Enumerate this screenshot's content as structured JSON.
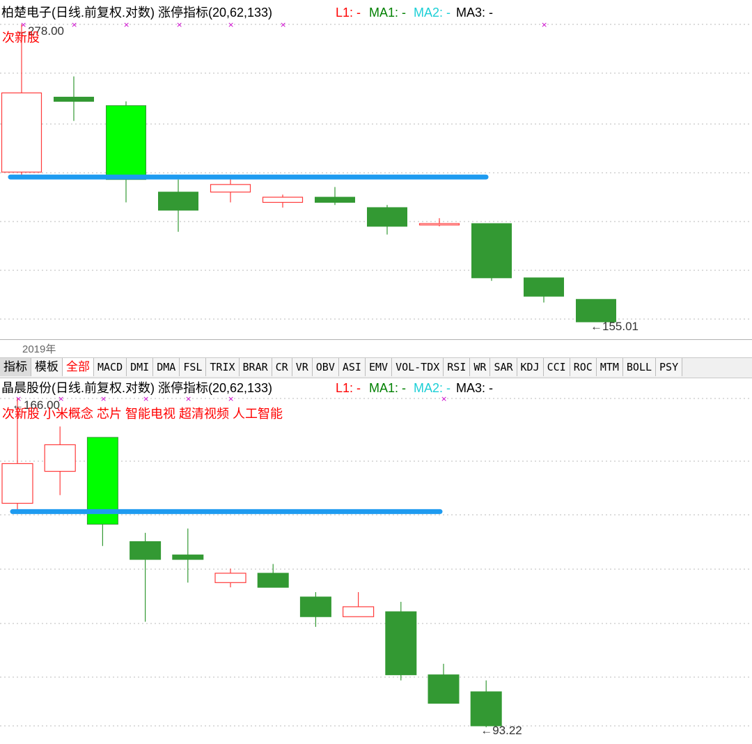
{
  "chart_data": [
    {
      "type": "candlestick",
      "title": "柏楚电子(日线.前复权.对数) 涨停指标(20,62,133)",
      "indicator": {
        "l1": "L1: -",
        "ma1": "MA1: -",
        "ma2": "MA2: -",
        "ma3": "MA3: -"
      },
      "tags": "次新股",
      "high_label": "278.00",
      "low_label": "155.01",
      "candles": [
        {
          "open": 208,
          "close": 243,
          "high": 278,
          "low": 206
        },
        {
          "open": 241,
          "close": 239,
          "high": 251,
          "low": 230
        },
        {
          "open": 237,
          "close": 205,
          "high": 239,
          "low": 196
        },
        {
          "open": 200,
          "close": 193,
          "high": 205,
          "low": 185
        },
        {
          "open": 200,
          "close": 203,
          "high": 206,
          "low": 196
        },
        {
          "open": 196,
          "close": 198,
          "high": 199,
          "low": 194
        },
        {
          "open": 198,
          "close": 196,
          "high": 202,
          "low": 195
        },
        {
          "open": 194,
          "close": 187,
          "high": 195,
          "low": 184
        },
        {
          "open": 188,
          "close": 188,
          "high": 190,
          "low": 187
        },
        {
          "open": 188,
          "close": 169,
          "high": 188,
          "low": 168
        },
        {
          "open": 169,
          "close": 163,
          "high": 169,
          "low": 161
        },
        {
          "open": 162,
          "close": 155,
          "high": 162,
          "low": 155
        }
      ],
      "support_line": 206
    },
    {
      "type": "candlestick",
      "title": "晶晨股份(日线.前复权.对数) 涨停指标(20,62,133)",
      "indicator": {
        "l1": "L1: -",
        "ma1": "MA1: -",
        "ma2": "MA2: -",
        "ma3": "MA3: -"
      },
      "tags": "次新股 小米概念 芯片 智能电视 超清视频 人工智能",
      "high_label": "166.00",
      "low_label": "93.22",
      "candles": [
        {
          "open": 138,
          "close": 148,
          "high": 166,
          "low": 136
        },
        {
          "open": 146,
          "close": 153,
          "high": 158,
          "low": 140
        },
        {
          "open": 155,
          "close": 133,
          "high": 155,
          "low": 128
        },
        {
          "open": 129,
          "close": 125,
          "high": 131,
          "low": 112
        },
        {
          "open": 126,
          "close": 125,
          "high": 132,
          "low": 120
        },
        {
          "open": 120,
          "close": 122,
          "high": 123,
          "low": 119
        },
        {
          "open": 122,
          "close": 119,
          "high": 124,
          "low": 119
        },
        {
          "open": 117,
          "close": 113,
          "high": 118,
          "low": 111
        },
        {
          "open": 113,
          "close": 115,
          "high": 118,
          "low": 113
        },
        {
          "open": 114,
          "close": 102,
          "high": 116,
          "low": 101
        },
        {
          "open": 102,
          "close": 97,
          "high": 104,
          "low": 97
        },
        {
          "open": 99,
          "close": 93.22,
          "high": 101,
          "low": 93
        }
      ],
      "support_line": 136
    }
  ],
  "year_label": "2019年",
  "toolbar": [
    "指标",
    "模板",
    "全部",
    "MACD",
    "DMI",
    "DMA",
    "FSL",
    "TRIX",
    "BRAR",
    "CR",
    "VR",
    "OBV",
    "ASI",
    "EMV",
    "VOL-TDX",
    "RSI",
    "WR",
    "SAR",
    "KDJ",
    "CCI",
    "ROC",
    "MTM",
    "BOLL",
    "PSY"
  ],
  "toolbar_active": "全部",
  "colors": {
    "up": "#ff3b3b",
    "down": "#339933",
    "limit_down": "#00ff00",
    "support": "#1e9bf0",
    "grid": "#b8b8b8",
    "marker": "#cc00cc"
  }
}
